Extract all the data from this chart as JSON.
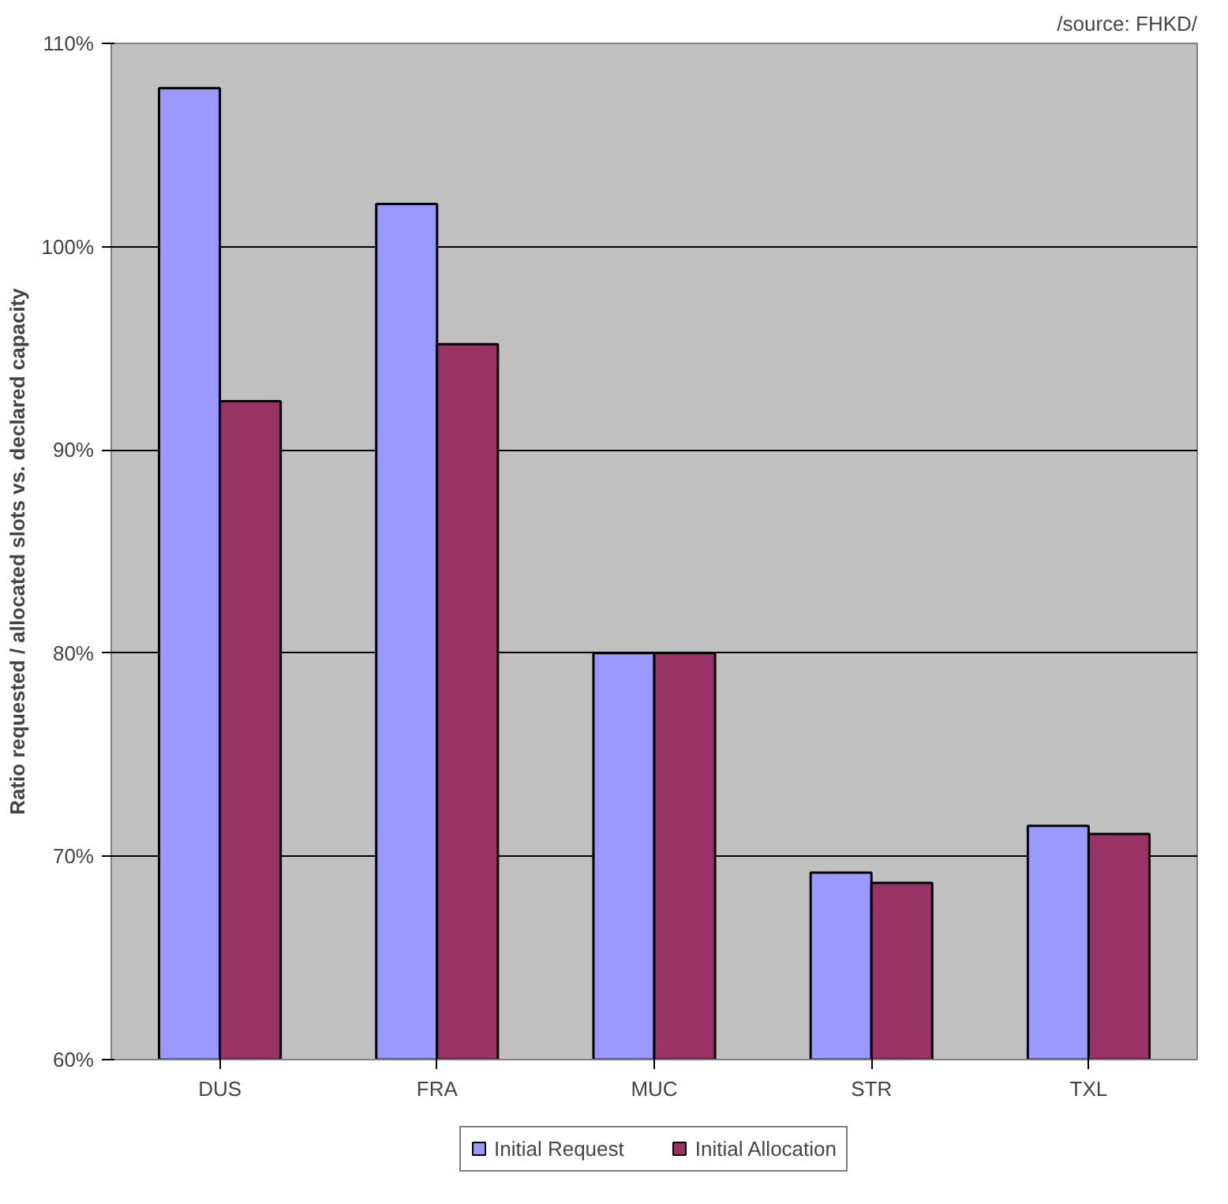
{
  "chart_data": {
    "type": "bar",
    "ylabel": "Ratio requested / allocated slots vs. declared capacity",
    "annotations": [
      "/source: FHKD/"
    ],
    "categories": [
      "DUS",
      "FRA",
      "MUC",
      "STR",
      "TXL"
    ],
    "series": [
      {
        "name": "Initial Request",
        "color": "#9999ff",
        "values": [
          107.8,
          102.1,
          80,
          69.2,
          71.5
        ]
      },
      {
        "name": "Initial Allocation",
        "color": "#993366",
        "values": [
          92.4,
          95.2,
          80,
          68.7,
          71.1
        ]
      }
    ],
    "ylim": [
      60,
      110
    ],
    "yticks": [
      {
        "value": 60,
        "label": "60%"
      },
      {
        "value": 70,
        "label": "70%"
      },
      {
        "value": 80,
        "label": "80%"
      },
      {
        "value": 90,
        "label": "90%"
      },
      {
        "value": 100,
        "label": "100%"
      },
      {
        "value": 110,
        "label": "110%"
      }
    ],
    "grid": "y",
    "legend": "bottom"
  }
}
